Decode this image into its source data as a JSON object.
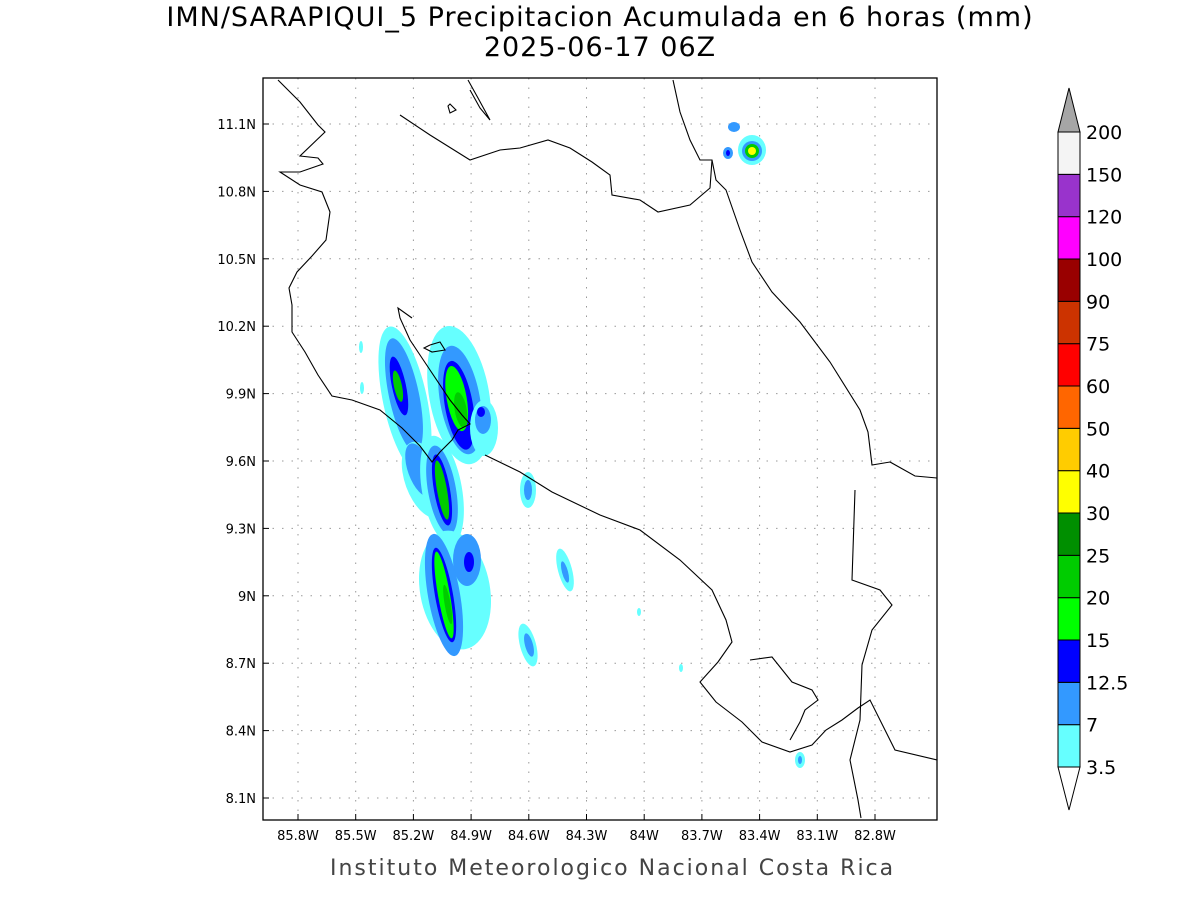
{
  "title": {
    "line1": "IMN/SARAPIQUI_5 Precipitacion Acumulada en 6 horas (mm)",
    "line2": "2025-06-17 06Z"
  },
  "footer": "Instituto Meteorologico Nacional Costa Rica",
  "map": {
    "lon_ticks": [
      "85.8W",
      "85.5W",
      "85.2W",
      "84.9W",
      "84.6W",
      "84.3W",
      "84W",
      "83.7W",
      "83.4W",
      "83.1W",
      "82.8W"
    ],
    "lat_ticks": [
      "11.1N",
      "10.8N",
      "10.5N",
      "10.2N",
      "9.9N",
      "9.6N",
      "9.3N",
      "9N",
      "8.7N",
      "8.4N",
      "8.1N"
    ]
  },
  "colorbar": {
    "labels": [
      "3.5",
      "7",
      "12.5",
      "15",
      "20",
      "25",
      "30",
      "40",
      "50",
      "60",
      "75",
      "90",
      "100",
      "120",
      "150",
      "200"
    ],
    "colors": [
      "#66ffff",
      "#3399ff",
      "#0000ff",
      "#00ff00",
      "#00cc00",
      "#008f00",
      "#ffff00",
      "#ffcc00",
      "#ff6600",
      "#ff0000",
      "#cc3300",
      "#990000",
      "#ff00ff",
      "#9933cc",
      "#f4f4f4"
    ],
    "over_color": "#a6a6a6",
    "under_color": "#ffffff"
  }
}
